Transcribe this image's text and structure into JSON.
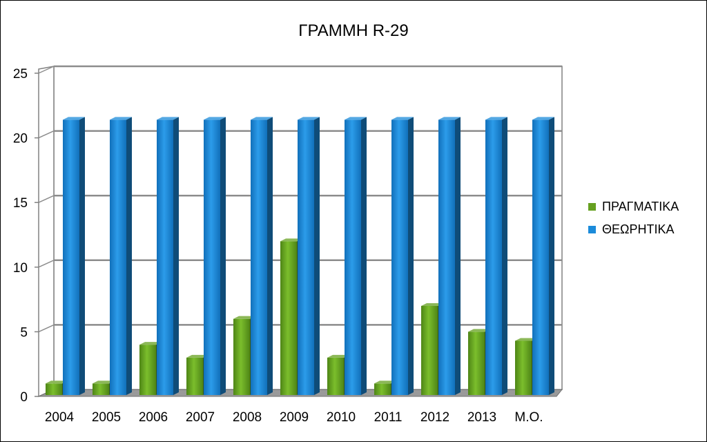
{
  "chart_data": {
    "type": "bar",
    "title": "ΓΡΑΜΜΗ R-29",
    "xlabel": "",
    "ylabel": "",
    "categories": [
      "2004",
      "2005",
      "2006",
      "2007",
      "2008",
      "2009",
      "2010",
      "2011",
      "2012",
      "2013",
      "Μ.Ο."
    ],
    "series": [
      {
        "name": "ΠΡΑΓΜΑΤΙΚΑ",
        "color": "#66A020",
        "values": [
          1,
          1,
          4,
          3,
          6,
          12,
          3,
          1,
          7,
          5,
          4.3
        ]
      },
      {
        "name": "ΘΕΩΡΗΤΙΚΑ",
        "color": "#1B8BDA",
        "values": [
          21.4,
          21.4,
          21.4,
          21.4,
          21.4,
          21.4,
          21.4,
          21.4,
          21.4,
          21.4,
          21.4
        ]
      }
    ],
    "ylim": [
      0,
      25
    ],
    "yticks": [
      "0",
      "5",
      "10",
      "15",
      "20",
      "25"
    ],
    "grid": true,
    "style": "3d-column",
    "legend": "right"
  }
}
